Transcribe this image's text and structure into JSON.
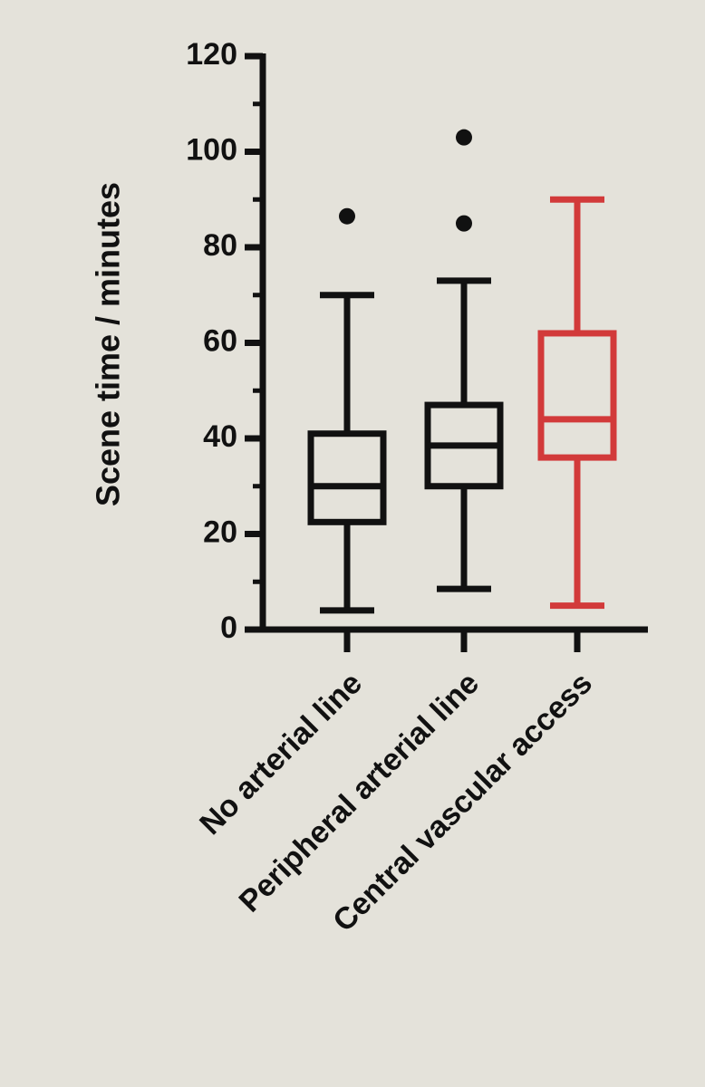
{
  "chart_data": {
    "type": "box",
    "ylabel": "Scene time / minutes",
    "categories": [
      "No arterial line",
      "Peripheral arterial line",
      "Central vascular access"
    ],
    "boxes": [
      {
        "min": 4,
        "q1": 22.5,
        "median": 30,
        "q3": 41,
        "max": 70,
        "outliers": [
          86.5
        ],
        "color": "#111111"
      },
      {
        "min": 8.5,
        "q1": 30,
        "median": 38.5,
        "q3": 47,
        "max": 73,
        "outliers": [
          85,
          103
        ],
        "color": "#111111"
      },
      {
        "min": 5,
        "q1": 36,
        "median": 44,
        "q3": 62,
        "max": 90,
        "outliers": [],
        "color": "#d23a3a"
      }
    ],
    "ylim": [
      0,
      120
    ],
    "yticks": [
      0,
      20,
      40,
      60,
      80,
      100,
      120
    ],
    "yticks_minor": [
      10,
      30,
      50,
      70,
      90,
      110
    ]
  }
}
